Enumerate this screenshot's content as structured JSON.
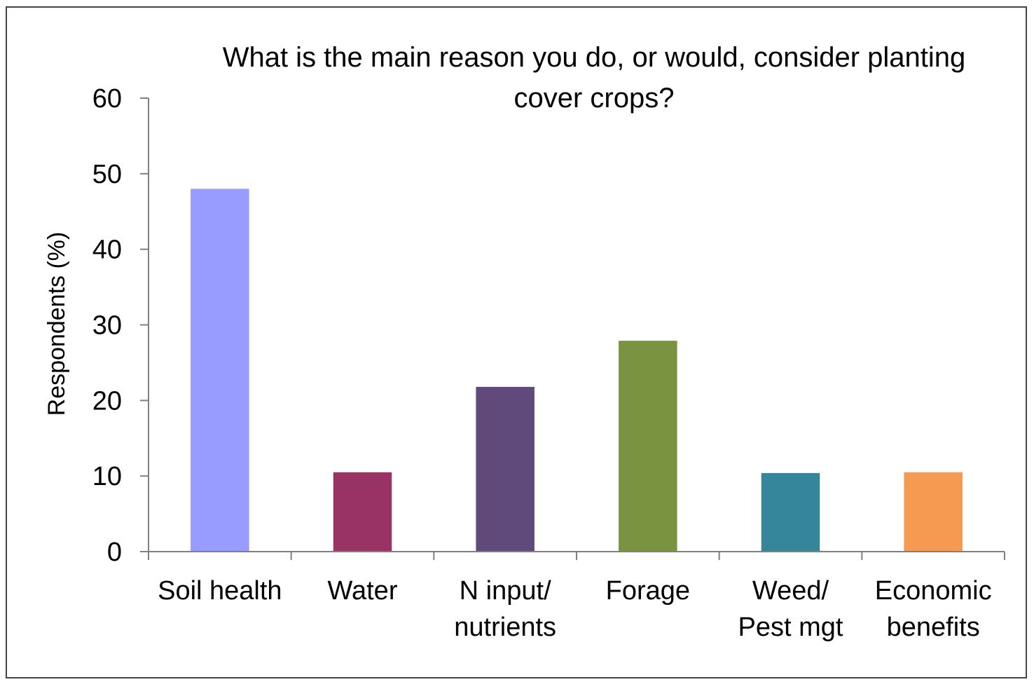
{
  "chart_data": {
    "type": "bar",
    "title_lines": [
      "What is the main reason you do, or would, consider planting",
      "cover crops?"
    ],
    "ylabel": "Respondents (%)",
    "xlabel": "",
    "ylim": [
      0,
      60
    ],
    "yticks": [
      0,
      10,
      20,
      30,
      40,
      50,
      60
    ],
    "grid": false,
    "legend": "none",
    "categories": [
      [
        "Soil health"
      ],
      [
        "Water"
      ],
      [
        "N input/",
        "nutrients"
      ],
      [
        "Forage"
      ],
      [
        "Weed/",
        "Pest mgt"
      ],
      [
        "Economic",
        "benefits"
      ]
    ],
    "values": [
      48,
      10.5,
      21.8,
      27.9,
      10.4,
      10.5
    ],
    "colors": [
      "#999cff",
      "#993366",
      "#604a7b",
      "#7a9340",
      "#36869b",
      "#f59a50"
    ]
  }
}
